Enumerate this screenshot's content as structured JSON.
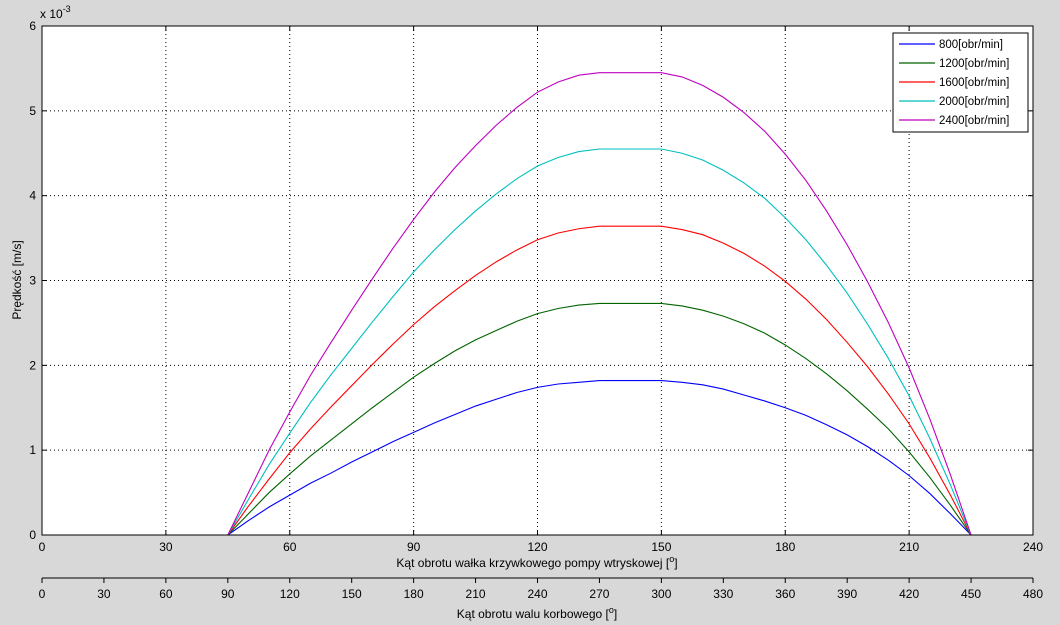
{
  "chart_data": {
    "type": "line",
    "title": "",
    "exponent_label": "x 10",
    "exponent_power": "-3",
    "ylabel": "Prędkość [m/s]",
    "xlabel": "Kąt obrotu wałka krzywkowego pompy wtryskowej [",
    "xlabel_unit_sup": "o",
    "xlabel_close": "]",
    "xlabel2": "Kąt obrotu walu korbowego [",
    "xlabel2_unit_sup": "o",
    "xlabel2_close": "]",
    "xlim": [
      0,
      240
    ],
    "ylim": [
      0,
      6
    ],
    "xticks": [
      0,
      30,
      60,
      90,
      120,
      150,
      180,
      210,
      240
    ],
    "yticks": [
      0,
      1,
      2,
      3,
      4,
      5,
      6
    ],
    "x2lim": [
      0,
      480
    ],
    "x2ticks": [
      0,
      30,
      60,
      90,
      120,
      150,
      180,
      210,
      240,
      270,
      300,
      330,
      360,
      390,
      420,
      450,
      480
    ],
    "grid": true,
    "legend_position": "top-right",
    "x": [
      45,
      50,
      55,
      60,
      65,
      70,
      75,
      80,
      85,
      90,
      95,
      100,
      105,
      110,
      115,
      120,
      125,
      130,
      135,
      140,
      145,
      150,
      155,
      160,
      165,
      170,
      175,
      180,
      185,
      190,
      195,
      200,
      205,
      210,
      215,
      220,
      225
    ],
    "series": [
      {
        "name": "800[obr/min]",
        "color": "#0000ff",
        "values": [
          0,
          0.17,
          0.33,
          0.47,
          0.61,
          0.73,
          0.86,
          0.98,
          1.1,
          1.21,
          1.32,
          1.42,
          1.52,
          1.6,
          1.68,
          1.74,
          1.78,
          1.8,
          1.82,
          1.82,
          1.82,
          1.82,
          1.8,
          1.77,
          1.72,
          1.65,
          1.58,
          1.5,
          1.41,
          1.3,
          1.18,
          1.04,
          0.88,
          0.7,
          0.49,
          0.25,
          0
        ]
      },
      {
        "name": "1200[obr/min]",
        "color": "#006400",
        "values": [
          0,
          0.25,
          0.5,
          0.72,
          0.93,
          1.12,
          1.31,
          1.5,
          1.68,
          1.86,
          2.02,
          2.17,
          2.3,
          2.41,
          2.52,
          2.61,
          2.67,
          2.71,
          2.73,
          2.73,
          2.73,
          2.73,
          2.7,
          2.65,
          2.58,
          2.49,
          2.38,
          2.24,
          2.08,
          1.9,
          1.7,
          1.48,
          1.25,
          0.98,
          0.68,
          0.35,
          0
        ]
      },
      {
        "name": "1600[obr/min]",
        "color": "#ff0000",
        "values": [
          0,
          0.34,
          0.66,
          0.97,
          1.25,
          1.51,
          1.76,
          2.01,
          2.25,
          2.48,
          2.69,
          2.88,
          3.06,
          3.22,
          3.36,
          3.48,
          3.56,
          3.61,
          3.64,
          3.64,
          3.64,
          3.64,
          3.6,
          3.54,
          3.44,
          3.32,
          3.17,
          2.99,
          2.78,
          2.54,
          2.27,
          1.98,
          1.66,
          1.31,
          0.91,
          0.47,
          0
        ]
      },
      {
        "name": "2000[obr/min]",
        "color": "#00bfbf",
        "values": [
          0,
          0.42,
          0.83,
          1.2,
          1.56,
          1.89,
          2.2,
          2.51,
          2.81,
          3.1,
          3.36,
          3.6,
          3.82,
          4.02,
          4.2,
          4.35,
          4.45,
          4.52,
          4.55,
          4.55,
          4.55,
          4.55,
          4.5,
          4.42,
          4.3,
          4.15,
          3.97,
          3.74,
          3.48,
          3.18,
          2.85,
          2.48,
          2.08,
          1.64,
          1.14,
          0.59,
          0
        ]
      },
      {
        "name": "2400[obr/min]",
        "color": "#bf00bf",
        "values": [
          0,
          0.5,
          1.0,
          1.45,
          1.88,
          2.27,
          2.65,
          3.02,
          3.38,
          3.72,
          4.04,
          4.33,
          4.59,
          4.83,
          5.04,
          5.22,
          5.34,
          5.42,
          5.45,
          5.45,
          5.45,
          5.45,
          5.4,
          5.3,
          5.16,
          4.98,
          4.76,
          4.49,
          4.18,
          3.82,
          3.42,
          2.98,
          2.5,
          1.97,
          1.37,
          0.71,
          0
        ]
      }
    ]
  }
}
